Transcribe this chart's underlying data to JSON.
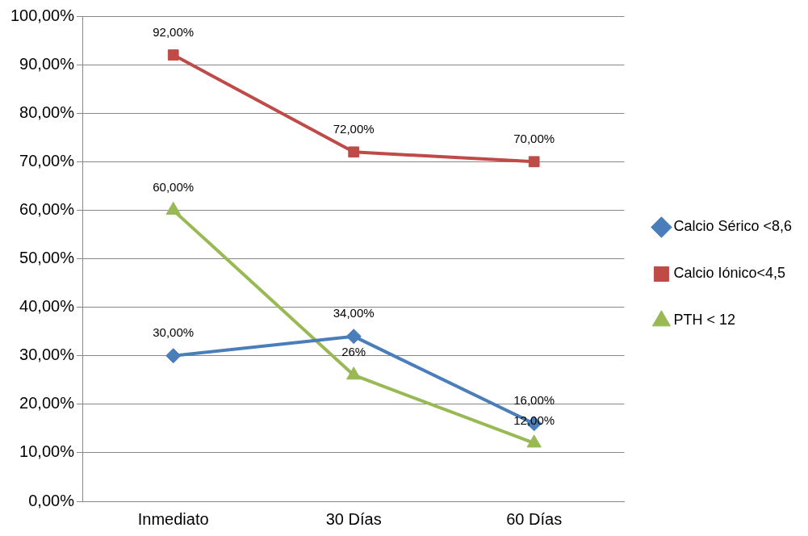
{
  "chart_data": {
    "type": "line",
    "categories": [
      "Inmediato",
      "30 Días",
      "60 Días"
    ],
    "series": [
      {
        "name": "Calcio Sérico <8,6",
        "color": "#4a7ebb",
        "marker": "diamond",
        "values": [
          30,
          34,
          16
        ],
        "value_labels": [
          "30,00%",
          "34,00%",
          "16,00%"
        ]
      },
      {
        "name": "Calcio Iónico<4,5",
        "color": "#be4b48",
        "marker": "square",
        "values": [
          92,
          72,
          70
        ],
        "value_labels": [
          "92,00%",
          "72,00%",
          "70,00%"
        ]
      },
      {
        "name": "PTH < 12",
        "color": "#98b954",
        "marker": "triangle",
        "values": [
          60,
          26,
          12
        ],
        "value_labels": [
          "60,00%",
          "26%",
          "12,00%"
        ]
      }
    ],
    "ylim": [
      0,
      100
    ],
    "yticks": [
      {
        "value": 0,
        "label": "0,00%"
      },
      {
        "value": 10,
        "label": "10,00%"
      },
      {
        "value": 20,
        "label": "20,00%"
      },
      {
        "value": 30,
        "label": "30,00%"
      },
      {
        "value": 40,
        "label": "40,00%"
      },
      {
        "value": 50,
        "label": "50,00%"
      },
      {
        "value": 60,
        "label": "60,00%"
      },
      {
        "value": 70,
        "label": "70,00%"
      },
      {
        "value": 80,
        "label": "80,00%"
      },
      {
        "value": 90,
        "label": "90,00%"
      },
      {
        "value": 100,
        "label": "100,00%"
      }
    ],
    "grid": "y",
    "legend": "right",
    "line_style": "solid"
  }
}
